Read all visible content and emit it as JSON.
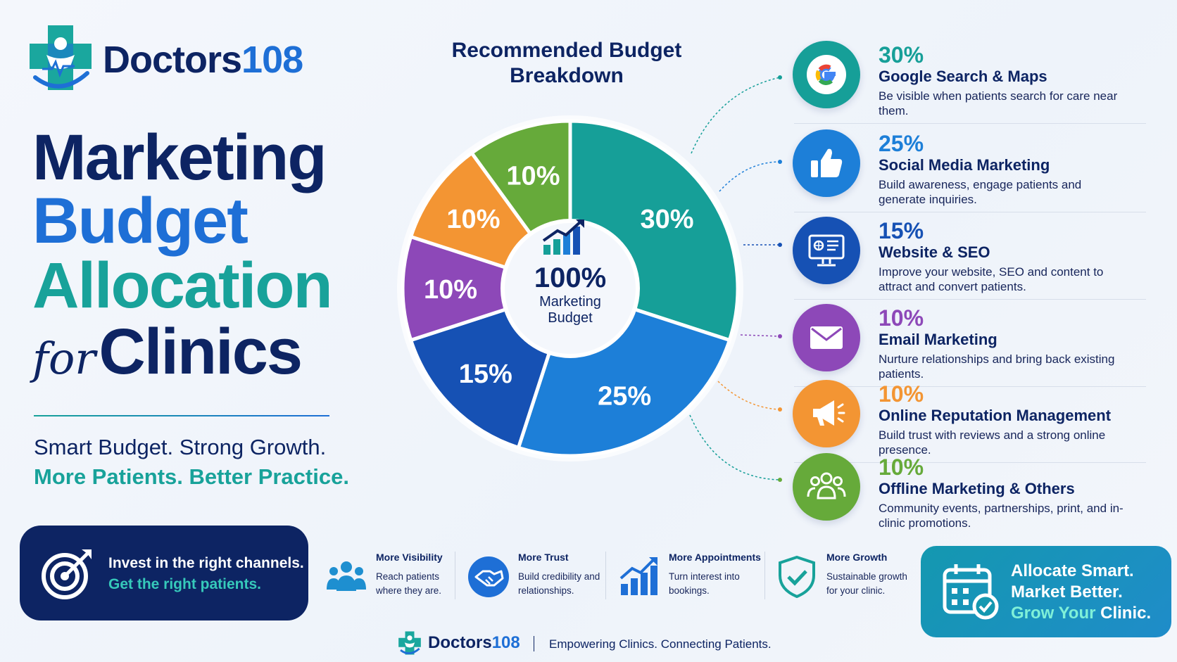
{
  "logo": {
    "name_part1": "Doctors",
    "name_part2": "108"
  },
  "headline": {
    "line1": "Marketing",
    "line2": "Budget",
    "line3": "Allocation",
    "line4_script": "for",
    "line4_bold": "Clinics"
  },
  "tagline": {
    "line1": "Smart Budget. Strong Growth.",
    "line2": "More Patients. Better Practice."
  },
  "chart_title": "Recommended Budget Breakdown",
  "chart_center": {
    "value": "100%",
    "label_line1": "Marketing",
    "label_line2": "Budget"
  },
  "chart_data": {
    "type": "pie",
    "title": "Recommended Budget Breakdown",
    "slices": [
      {
        "label": "30%",
        "value": 30,
        "color": "#169f98"
      },
      {
        "label": "25%",
        "value": 25,
        "color": "#1d7fd8"
      },
      {
        "label": "15%",
        "value": 15,
        "color": "#1651b4"
      },
      {
        "label": "10%",
        "value": 10,
        "color": "#8d48b8"
      },
      {
        "label": "10%",
        "value": 10,
        "color": "#f39533"
      },
      {
        "label": "10%",
        "value": 10,
        "color": "#66aa3a"
      }
    ]
  },
  "legend": [
    {
      "pct": "30%",
      "title": "Google Search & Maps",
      "desc": "Be visible when patients search for care near them.",
      "color": "#169f98",
      "icon": "google-icon"
    },
    {
      "pct": "25%",
      "title": "Social Media Marketing",
      "desc": "Build awareness, engage patients and generate inquiries.",
      "color": "#1d7fd8",
      "icon": "thumbs-up-icon"
    },
    {
      "pct": "15%",
      "title": "Website & SEO",
      "desc": "Improve your website, SEO and content to attract and convert patients.",
      "color": "#1651b4",
      "icon": "monitor-icon"
    },
    {
      "pct": "10%",
      "title": "Email Marketing",
      "desc": "Nurture relationships and bring back existing patients.",
      "color": "#8d48b8",
      "icon": "envelope-icon"
    },
    {
      "pct": "10%",
      "title": "Online Reputation Management",
      "desc": "Build trust with reviews and a strong online presence.",
      "color": "#f39533",
      "icon": "megaphone-icon"
    },
    {
      "pct": "10%",
      "title": "Offline Marketing & Others",
      "desc": "Community events, partnerships, print, and in-clinic promotions.",
      "color": "#66aa3a",
      "icon": "people-icon"
    }
  ],
  "invest": {
    "line1": "Invest in the right channels.",
    "line2": "Get the right patients."
  },
  "benefits": [
    {
      "title": "More Visibility",
      "desc": "Reach patients where they are.",
      "icon": "people-icon"
    },
    {
      "title": "More Trust",
      "desc": "Build credibility and relationships.",
      "icon": "handshake-icon"
    },
    {
      "title": "More Appointments",
      "desc": "Turn interest into bookings.",
      "icon": "bar-chart-icon"
    },
    {
      "title": "More Growth",
      "desc": "Sustainable growth for your clinic.",
      "icon": "shield-check-icon"
    }
  ],
  "allocate": {
    "line1": "Allocate Smart.",
    "line2": "Market Better.",
    "line3_part1": "Grow Your",
    "line3_part2": " Clinic."
  },
  "footer": {
    "name_part1": "Doctors",
    "name_part2": "108",
    "slogan": "Empowering Clinics. Connecting Patients."
  }
}
